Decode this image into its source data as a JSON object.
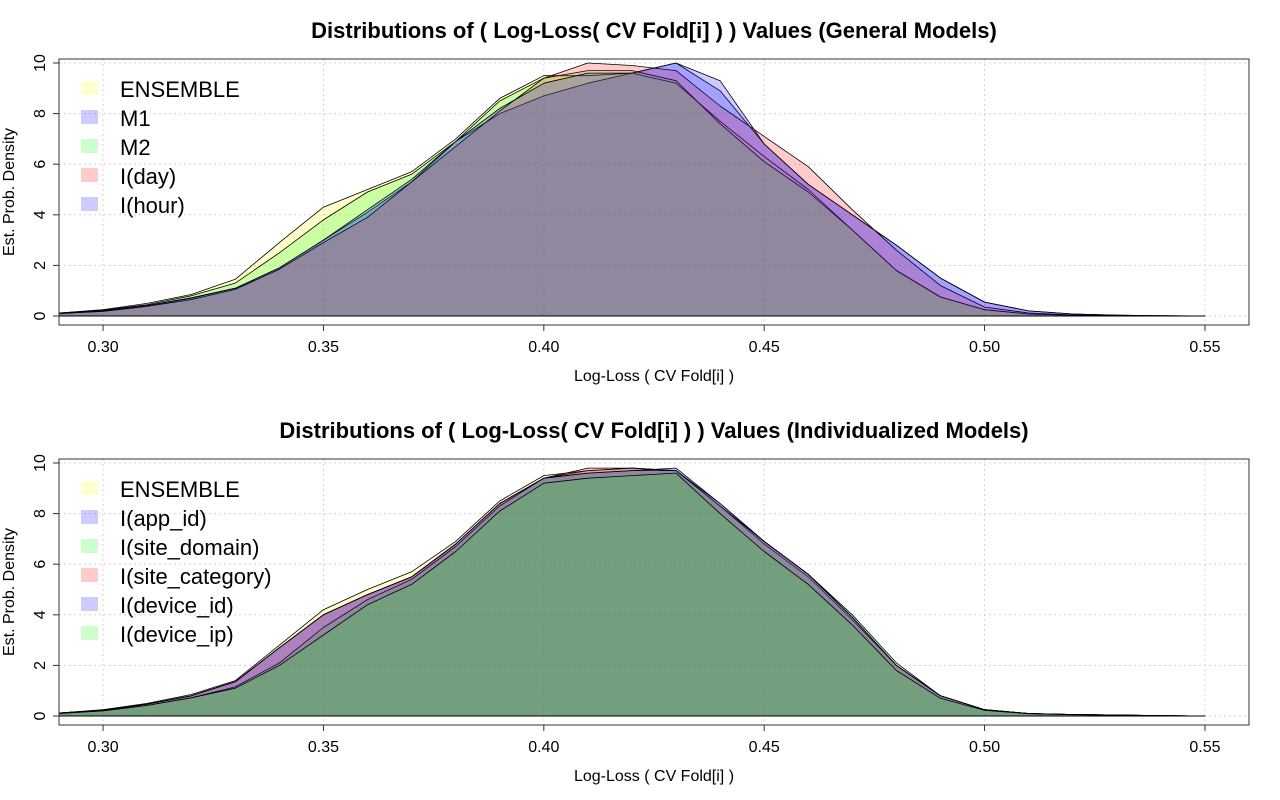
{
  "chart_data": [
    {
      "type": "area",
      "title": "Distributions of ( Log-Loss( CV Fold[i] ) ) Values (General Models)",
      "xlabel": "Log-Loss ( CV Fold[i] )",
      "ylabel": "Est. Prob. Density",
      "xlim": [
        0.29,
        0.56
      ],
      "ylim": [
        0,
        10
      ],
      "xticks": [
        "0.30",
        "0.35",
        "0.40",
        "0.45",
        "0.50",
        "0.55"
      ],
      "yticks": [
        "0",
        "2",
        "4",
        "6",
        "8",
        "10"
      ],
      "grid": true,
      "legend_position": "top-left",
      "series": [
        {
          "name": "ENSEMBLE",
          "color": "#ffff00",
          "x": [
            0.29,
            0.3,
            0.31,
            0.32,
            0.33,
            0.34,
            0.35,
            0.36,
            0.37,
            0.38,
            0.39,
            0.4,
            0.41,
            0.42,
            0.43,
            0.44,
            0.45,
            0.46,
            0.47,
            0.48,
            0.49,
            0.5,
            0.51,
            0.52,
            0.53,
            0.54,
            0.55
          ],
          "y": [
            0.12,
            0.25,
            0.5,
            0.85,
            1.45,
            2.9,
            4.3,
            5.0,
            5.7,
            7.0,
            8.6,
            9.5,
            9.5,
            9.6,
            9.2,
            7.7,
            6.3,
            5.0,
            3.4,
            1.8,
            0.75,
            0.25,
            0.08,
            0.03,
            0.01,
            0.0,
            0.0
          ]
        },
        {
          "name": "M1",
          "color": "#0000ff",
          "x": [
            0.29,
            0.3,
            0.31,
            0.32,
            0.33,
            0.34,
            0.35,
            0.36,
            0.37,
            0.38,
            0.39,
            0.4,
            0.41,
            0.42,
            0.43,
            0.44,
            0.45,
            0.46,
            0.47,
            0.48,
            0.49,
            0.5,
            0.51,
            0.52,
            0.53,
            0.54,
            0.55
          ],
          "y": [
            0.1,
            0.18,
            0.4,
            0.7,
            1.1,
            1.9,
            3.0,
            4.1,
            5.3,
            6.9,
            8.0,
            8.7,
            9.2,
            9.6,
            10.0,
            8.9,
            6.8,
            5.2,
            4.0,
            2.8,
            1.5,
            0.55,
            0.2,
            0.08,
            0.03,
            0.01,
            0.0
          ]
        },
        {
          "name": "M2",
          "color": "#00ff00",
          "x": [
            0.29,
            0.3,
            0.31,
            0.32,
            0.33,
            0.34,
            0.35,
            0.36,
            0.37,
            0.38,
            0.39,
            0.4,
            0.41,
            0.42,
            0.43,
            0.44,
            0.45,
            0.46,
            0.47,
            0.48,
            0.49,
            0.5,
            0.51,
            0.52,
            0.53,
            0.54,
            0.55
          ],
          "y": [
            0.12,
            0.23,
            0.45,
            0.8,
            1.3,
            2.5,
            3.8,
            4.9,
            5.6,
            6.9,
            8.5,
            9.4,
            9.7,
            9.7,
            9.3,
            7.6,
            6.1,
            4.9,
            3.4,
            1.8,
            0.75,
            0.25,
            0.08,
            0.03,
            0.01,
            0.0,
            0.0
          ]
        },
        {
          "name": "I(day)",
          "color": "#ff0000",
          "x": [
            0.29,
            0.3,
            0.31,
            0.32,
            0.33,
            0.34,
            0.35,
            0.36,
            0.37,
            0.38,
            0.39,
            0.4,
            0.41,
            0.42,
            0.43,
            0.44,
            0.45,
            0.46,
            0.47,
            0.48,
            0.49,
            0.5,
            0.51,
            0.52,
            0.53,
            0.54,
            0.55
          ],
          "y": [
            0.1,
            0.18,
            0.38,
            0.65,
            1.05,
            1.85,
            2.9,
            3.9,
            5.3,
            6.7,
            8.1,
            9.4,
            10.0,
            9.9,
            9.7,
            8.3,
            7.1,
            5.9,
            4.2,
            2.6,
            1.2,
            0.35,
            0.12,
            0.04,
            0.01,
            0.0,
            0.0
          ]
        },
        {
          "name": "I(hour)",
          "color": "#0000ff",
          "x": [
            0.29,
            0.3,
            0.31,
            0.32,
            0.33,
            0.34,
            0.35,
            0.36,
            0.37,
            0.38,
            0.39,
            0.4,
            0.41,
            0.42,
            0.43,
            0.44,
            0.45,
            0.46,
            0.47,
            0.48,
            0.49,
            0.5,
            0.51,
            0.52,
            0.53,
            0.54,
            0.55
          ],
          "y": [
            0.1,
            0.2,
            0.42,
            0.72,
            1.1,
            1.9,
            3.0,
            4.2,
            5.4,
            6.9,
            8.2,
            9.2,
            9.6,
            9.6,
            10.0,
            9.3,
            6.8,
            5.2,
            4.0,
            2.8,
            1.5,
            0.55,
            0.2,
            0.08,
            0.03,
            0.01,
            0.0
          ]
        }
      ]
    },
    {
      "type": "area",
      "title": "Distributions of ( Log-Loss( CV Fold[i] ) ) Values (Individualized Models)",
      "xlabel": "Log-Loss ( CV Fold[i] )",
      "ylabel": "Est. Prob. Density",
      "xlim": [
        0.29,
        0.56
      ],
      "ylim": [
        0,
        10
      ],
      "xticks": [
        "0.30",
        "0.35",
        "0.40",
        "0.45",
        "0.50",
        "0.55"
      ],
      "yticks": [
        "0",
        "2",
        "4",
        "6",
        "8",
        "10"
      ],
      "grid": true,
      "legend_position": "top-left",
      "series": [
        {
          "name": "ENSEMBLE",
          "color": "#ffff00",
          "x": [
            0.29,
            0.3,
            0.31,
            0.32,
            0.33,
            0.34,
            0.35,
            0.36,
            0.37,
            0.38,
            0.39,
            0.4,
            0.41,
            0.42,
            0.43,
            0.44,
            0.45,
            0.46,
            0.47,
            0.48,
            0.49,
            0.5,
            0.51,
            0.52,
            0.53,
            0.54,
            0.55
          ],
          "y": [
            0.12,
            0.25,
            0.5,
            0.85,
            1.4,
            2.8,
            4.2,
            5.0,
            5.7,
            6.9,
            8.5,
            9.5,
            9.7,
            9.8,
            9.7,
            8.3,
            6.8,
            5.5,
            3.8,
            2.0,
            0.8,
            0.25,
            0.1,
            0.06,
            0.04,
            0.01,
            0.0
          ]
        },
        {
          "name": "I(app_id)",
          "color": "#0000ff",
          "x": [
            0.29,
            0.3,
            0.31,
            0.32,
            0.33,
            0.34,
            0.35,
            0.36,
            0.37,
            0.38,
            0.39,
            0.4,
            0.41,
            0.42,
            0.43,
            0.44,
            0.45,
            0.46,
            0.47,
            0.48,
            0.49,
            0.5,
            0.51,
            0.52,
            0.53,
            0.54,
            0.55
          ],
          "y": [
            0.12,
            0.23,
            0.47,
            0.8,
            1.35,
            2.7,
            4.0,
            4.8,
            5.5,
            6.8,
            8.4,
            9.4,
            9.7,
            9.8,
            9.7,
            8.3,
            6.9,
            5.6,
            3.9,
            2.0,
            0.8,
            0.25,
            0.1,
            0.06,
            0.04,
            0.01,
            0.0
          ]
        },
        {
          "name": "I(site_domain)",
          "color": "#00ff00",
          "x": [
            0.29,
            0.3,
            0.31,
            0.32,
            0.33,
            0.34,
            0.35,
            0.36,
            0.37,
            0.38,
            0.39,
            0.4,
            0.41,
            0.42,
            0.43,
            0.44,
            0.45,
            0.46,
            0.47,
            0.48,
            0.49,
            0.5,
            0.51,
            0.52,
            0.53,
            0.54,
            0.55
          ],
          "y": [
            0.1,
            0.2,
            0.42,
            0.72,
            1.15,
            2.1,
            3.5,
            4.6,
            5.4,
            6.7,
            8.3,
            9.4,
            9.6,
            9.7,
            9.7,
            8.4,
            6.9,
            5.6,
            4.0,
            2.1,
            0.8,
            0.25,
            0.1,
            0.06,
            0.04,
            0.01,
            0.0
          ]
        },
        {
          "name": "I(site_category)",
          "color": "#ff0000",
          "x": [
            0.29,
            0.3,
            0.31,
            0.32,
            0.33,
            0.34,
            0.35,
            0.36,
            0.37,
            0.38,
            0.39,
            0.4,
            0.41,
            0.42,
            0.43,
            0.44,
            0.45,
            0.46,
            0.47,
            0.48,
            0.49,
            0.5,
            0.51,
            0.52,
            0.53,
            0.54,
            0.55
          ],
          "y": [
            0.12,
            0.23,
            0.47,
            0.8,
            1.35,
            2.7,
            4.0,
            4.8,
            5.5,
            6.8,
            8.4,
            9.4,
            9.8,
            9.8,
            9.7,
            8.3,
            6.9,
            5.6,
            3.9,
            2.0,
            0.8,
            0.25,
            0.1,
            0.06,
            0.04,
            0.01,
            0.0
          ]
        },
        {
          "name": "I(device_id)",
          "color": "#0000ff",
          "x": [
            0.29,
            0.3,
            0.31,
            0.32,
            0.33,
            0.34,
            0.35,
            0.36,
            0.37,
            0.38,
            0.39,
            0.4,
            0.41,
            0.42,
            0.43,
            0.44,
            0.45,
            0.46,
            0.47,
            0.48,
            0.49,
            0.5,
            0.51,
            0.52,
            0.53,
            0.54,
            0.55
          ],
          "y": [
            0.12,
            0.23,
            0.47,
            0.8,
            1.35,
            2.7,
            4.0,
            4.8,
            5.5,
            6.8,
            8.4,
            9.4,
            9.6,
            9.7,
            9.8,
            8.4,
            6.9,
            5.6,
            3.9,
            2.0,
            0.8,
            0.25,
            0.1,
            0.06,
            0.04,
            0.01,
            0.0
          ]
        },
        {
          "name": "I(device_ip)",
          "color": "#00ff00",
          "x": [
            0.29,
            0.3,
            0.31,
            0.32,
            0.33,
            0.34,
            0.35,
            0.36,
            0.37,
            0.38,
            0.39,
            0.4,
            0.41,
            0.42,
            0.43,
            0.44,
            0.45,
            0.46,
            0.47,
            0.48,
            0.49,
            0.5,
            0.51,
            0.52,
            0.53,
            0.54,
            0.55
          ],
          "y": [
            0.1,
            0.2,
            0.42,
            0.72,
            1.1,
            2.0,
            3.2,
            4.4,
            5.2,
            6.5,
            8.1,
            9.2,
            9.4,
            9.5,
            9.6,
            8.0,
            6.5,
            5.2,
            3.6,
            1.8,
            0.7,
            0.22,
            0.09,
            0.05,
            0.03,
            0.01,
            0.0
          ]
        }
      ]
    }
  ]
}
